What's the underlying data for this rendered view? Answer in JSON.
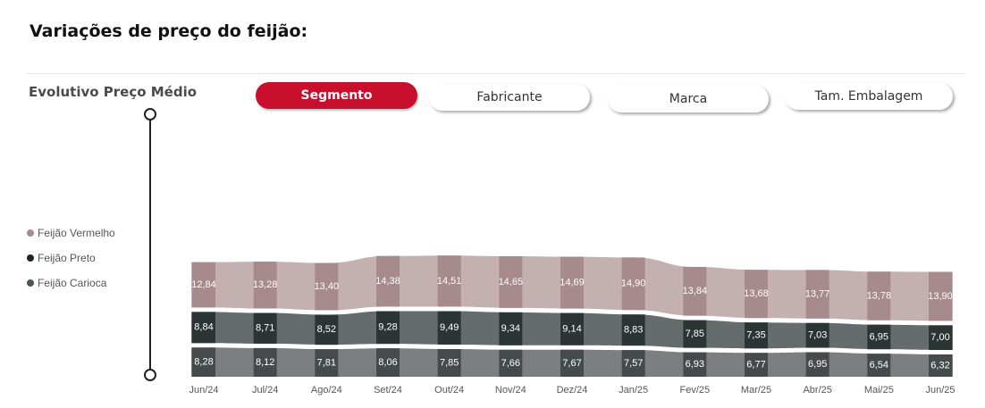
{
  "page": {
    "title": "Variações de preço do feijão:"
  },
  "chart_header": {
    "title": "Evolutivo Preço Médio"
  },
  "tabs": [
    {
      "label": "Segmento",
      "active": true
    },
    {
      "label": "Fabricante",
      "active": false
    },
    {
      "label": "Marca",
      "active": false
    },
    {
      "label": "Tam. Embalagem",
      "active": false
    }
  ],
  "colors": {
    "accent": "#c8102e",
    "vermelho_light": "#c4b0b1",
    "vermelho_dark": "#a68a8c",
    "preto_light": "#666b6b",
    "preto_dark": "#2b3534",
    "carioca_light": "#7c7f7f",
    "carioca_dark": "#454b4b",
    "legend_vermelho": "#a88b8e",
    "legend_preto": "#1f2524",
    "legend_carioca": "#4d5553"
  },
  "chart_data": {
    "type": "area",
    "stacked": true,
    "categories": [
      "Jun/24",
      "Jul/24",
      "Ago/24",
      "Set/24",
      "Out/24",
      "Nov/24",
      "Dez/24",
      "Jan/25",
      "Fev/25",
      "Mar/25",
      "Abr/25",
      "Mai/25",
      "Jun/25"
    ],
    "series": [
      {
        "name": "Feijão Vermelho",
        "values": [
          12.84,
          13.28,
          13.4,
          14.38,
          14.51,
          14.65,
          14.69,
          14.9,
          13.84,
          13.68,
          13.77,
          13.78,
          13.9
        ],
        "labels": [
          "12,84",
          "13,28",
          "13,40",
          "14,38",
          "14,51",
          "14,65",
          "14,69",
          "14,90",
          "13,84",
          "13,68",
          "13,77",
          "13,78",
          "13,90"
        ]
      },
      {
        "name": "Feijão Preto",
        "values": [
          8.84,
          8.71,
          8.52,
          9.28,
          9.49,
          9.34,
          9.14,
          8.83,
          7.85,
          7.35,
          7.03,
          6.95,
          7.0
        ],
        "labels": [
          "8,84",
          "8,71",
          "8,52",
          "9,28",
          "9,49",
          "9,34",
          "9,14",
          "8,83",
          "7,85",
          "7,35",
          "7,03",
          "6,95",
          "7,00"
        ]
      },
      {
        "name": "Feijão Carioca",
        "values": [
          8.28,
          8.12,
          7.81,
          8.06,
          7.85,
          7.66,
          7.67,
          7.57,
          6.93,
          6.77,
          6.95,
          6.54,
          6.32
        ],
        "labels": [
          "8,28",
          "8,12",
          "7,81",
          "8,06",
          "7,85",
          "7,66",
          "7,67",
          "7,57",
          "6,93",
          "6,77",
          "6,95",
          "6,54",
          "6,32"
        ]
      }
    ],
    "legend": {
      "position": "left"
    },
    "grid": false
  }
}
